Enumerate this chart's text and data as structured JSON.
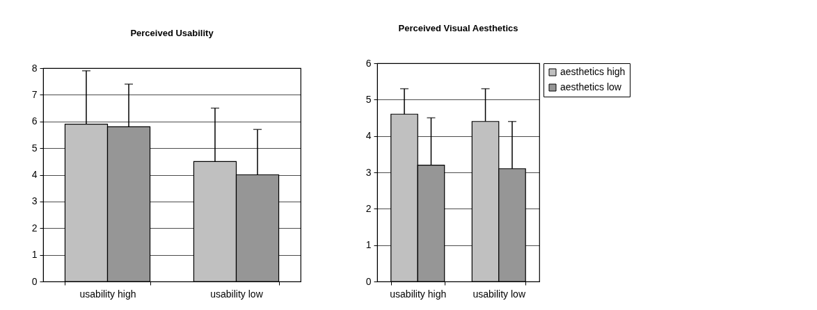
{
  "chart_data": [
    {
      "type": "bar",
      "title": "Perceived Usability",
      "categories": [
        "usability high",
        "usability low"
      ],
      "ylim": [
        0,
        8
      ],
      "yticks": [
        0,
        1,
        2,
        3,
        4,
        5,
        6,
        7,
        8
      ],
      "grid": "y",
      "legend": false,
      "series": [
        {
          "color": "#c0c0c0",
          "values": [
            5.9,
            4.5
          ],
          "errors": [
            [
              5.9,
              7.9
            ],
            [
              4.5,
              6.5
            ]
          ]
        },
        {
          "color": "#969696",
          "values": [
            5.8,
            4.0
          ],
          "errors": [
            [
              5.8,
              7.4
            ],
            [
              4.0,
              5.7
            ]
          ]
        }
      ]
    },
    {
      "type": "bar",
      "title": "Perceived Visual Aesthetics",
      "categories": [
        "usability high",
        "usability low"
      ],
      "ylim": [
        0,
        6
      ],
      "yticks": [
        0,
        1,
        2,
        3,
        4,
        5,
        6
      ],
      "grid": "y",
      "legend": "right",
      "series": [
        {
          "name": "aesthetics high",
          "color": "#c0c0c0",
          "values": [
            4.6,
            4.4
          ],
          "errors": [
            [
              4.6,
              5.3
            ],
            [
              4.4,
              5.3
            ]
          ]
        },
        {
          "name": "aesthetics low",
          "color": "#969696",
          "values": [
            3.2,
            3.1
          ],
          "errors": [
            [
              3.2,
              4.5
            ],
            [
              3.1,
              4.4
            ]
          ]
        }
      ]
    }
  ]
}
